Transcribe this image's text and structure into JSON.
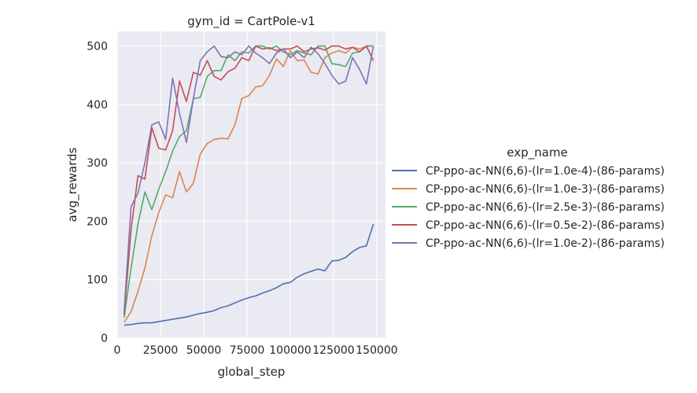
{
  "chart_data": {
    "type": "line",
    "title": "gym_id = CartPole-v1",
    "xlabel": "global_step",
    "ylabel": "avg_rewards",
    "xlim": [
      0,
      155000
    ],
    "ylim": [
      0,
      525
    ],
    "xticks": [
      0,
      25000,
      50000,
      75000,
      100000,
      125000,
      150000
    ],
    "xtick_labels": [
      "0",
      "25000",
      "50000",
      "75000",
      "100000",
      "125000",
      "150000"
    ],
    "yticks": [
      0,
      100,
      200,
      300,
      400,
      500
    ],
    "ytick_labels": [
      "0",
      "100",
      "200",
      "300",
      "400",
      "500"
    ],
    "grid": true,
    "legend_title": "exp_name",
    "legend_position": "right",
    "x": [
      4000,
      8000,
      12000,
      16000,
      20000,
      24000,
      28000,
      32000,
      36000,
      40000,
      44000,
      48000,
      52000,
      56000,
      60000,
      64000,
      68000,
      72000,
      76000,
      80000,
      84000,
      88000,
      92000,
      96000,
      100000,
      104000,
      108000,
      112000,
      116000,
      120000,
      124000,
      128000,
      132000,
      136000,
      140000,
      144000,
      148000
    ],
    "series": [
      {
        "name": "CP-ppo-ac-NN(6,6)-(lr=1.0e-4)-(86-params)",
        "color": "#4c72b0",
        "values": [
          22,
          23,
          25,
          26,
          26,
          28,
          30,
          32,
          34,
          36,
          39,
          42,
          44,
          47,
          52,
          55,
          60,
          65,
          69,
          72,
          77,
          81,
          86,
          93,
          95,
          104,
          110,
          114,
          118,
          115,
          132,
          133,
          138,
          148,
          155,
          158,
          195
        ]
      },
      {
        "name": "CP-ppo-ac-NN(6,6)-(lr=1.0e-3)-(86-params)",
        "color": "#dd8452",
        "values": [
          27,
          45,
          80,
          120,
          175,
          215,
          245,
          240,
          285,
          250,
          265,
          315,
          333,
          340,
          342,
          341,
          365,
          410,
          415,
          430,
          432,
          450,
          478,
          465,
          492,
          475,
          476,
          455,
          452,
          480,
          488,
          492,
          488,
          498,
          495,
          500,
          500
        ]
      },
      {
        "name": "CP-ppo-ac-NN(6,6)-(lr=2.5e-3)-(86-params)",
        "color": "#55a868",
        "values": [
          35,
          120,
          195,
          250,
          220,
          255,
          285,
          320,
          345,
          355,
          410,
          412,
          448,
          458,
          458,
          485,
          475,
          490,
          488,
          500,
          500,
          495,
          500,
          490,
          485,
          492,
          488,
          485,
          500,
          500,
          470,
          468,
          465,
          488,
          490,
          500,
          500
        ]
      },
      {
        "name": "CP-ppo-ac-NN(6,6)-(lr=0.5e-2)-(86-params)",
        "color": "#c44e52",
        "values": [
          40,
          185,
          278,
          272,
          360,
          325,
          322,
          355,
          440,
          405,
          455,
          450,
          475,
          448,
          442,
          456,
          462,
          480,
          475,
          500,
          495,
          497,
          492,
          495,
          495,
          500,
          490,
          495,
          497,
          493,
          500,
          500,
          495,
          498,
          490,
          500,
          475
        ]
      },
      {
        "name": "CP-ppo-ac-NN(6,6)-(lr=1.0e-2)-(86-params)",
        "color": "#8172b3",
        "values": [
          45,
          225,
          248,
          300,
          365,
          370,
          340,
          445,
          385,
          335,
          410,
          475,
          490,
          500,
          482,
          480,
          490,
          485,
          500,
          488,
          480,
          470,
          488,
          495,
          480,
          490,
          480,
          498,
          487,
          470,
          450,
          435,
          440,
          480,
          460,
          435,
          500
        ]
      }
    ]
  }
}
